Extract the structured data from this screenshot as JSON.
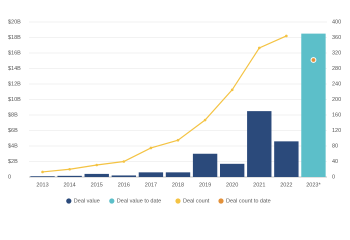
{
  "chart_data": {
    "type": "combo",
    "categories": [
      "2013",
      "2014",
      "2015",
      "2016",
      "2017",
      "2018",
      "2019",
      "2020",
      "2021",
      "2022",
      "2023*"
    ],
    "series": [
      {
        "name": "Deal value",
        "type": "bar",
        "color": "#2b4a7b",
        "values": [
          0.1,
          0.15,
          0.4,
          0.2,
          0.6,
          0.6,
          3.0,
          1.7,
          8.5,
          4.6,
          null
        ]
      },
      {
        "name": "Deal value to date",
        "type": "bar",
        "color": "#5cbfc9",
        "values": [
          null,
          null,
          null,
          null,
          null,
          null,
          null,
          null,
          null,
          null,
          18.5
        ]
      },
      {
        "name": "Deal count",
        "type": "line",
        "axis": "y2",
        "color": "#f4c343",
        "values": [
          13,
          20,
          31,
          40,
          75,
          95,
          147,
          225,
          333,
          364,
          null
        ]
      },
      {
        "name": "Deal count to date",
        "type": "point",
        "axis": "y2",
        "color": "#e3913a",
        "values": [
          null,
          null,
          null,
          null,
          null,
          null,
          null,
          null,
          null,
          null,
          302
        ]
      }
    ],
    "ylim": [
      0,
      20
    ],
    "yticks": [
      0,
      {
        "value": 2,
        "label": "$2B"
      },
      {
        "value": 4,
        "label": "$4B"
      },
      {
        "value": 6,
        "label": "$6B"
      },
      {
        "value": 8,
        "label": "$8B"
      },
      {
        "value": 10,
        "label": "$10B"
      },
      {
        "value": 12,
        "label": "$12B"
      },
      {
        "value": 14,
        "label": "$14B"
      },
      {
        "value": 16,
        "label": "$16B"
      },
      {
        "value": 18,
        "label": "$18B"
      },
      {
        "value": 20,
        "label": "$20B"
      }
    ],
    "y2lim": [
      0,
      400
    ],
    "y2ticks": [
      0,
      40,
      80,
      120,
      160,
      200,
      240,
      280,
      320,
      360,
      400
    ],
    "grid": true,
    "legend": "bottom"
  }
}
